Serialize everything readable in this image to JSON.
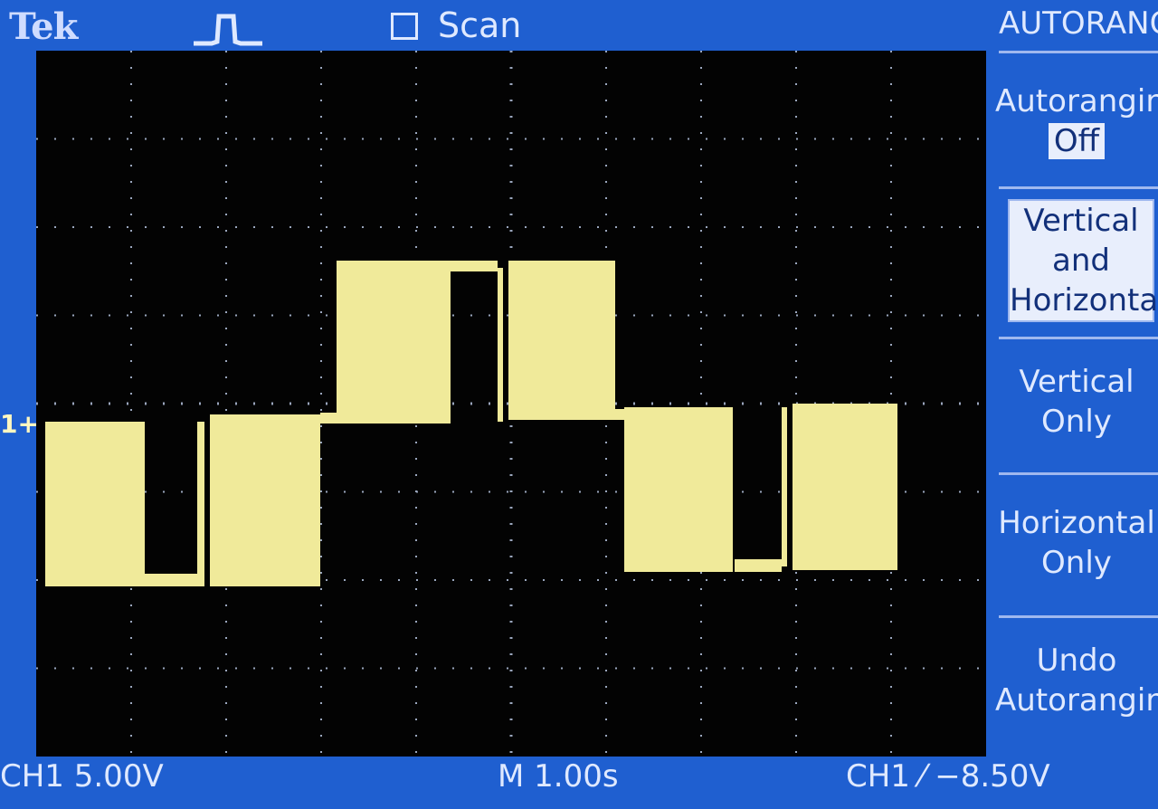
{
  "header": {
    "brand": "Tek",
    "acquire_icon": "pulse-icon",
    "scan_label": "Scan"
  },
  "colors": {
    "background": "#1f5fd0",
    "screen": "#030303",
    "trace": "#f0ea9a",
    "grid": "#9aa6bd"
  },
  "display": {
    "channel_marker": "1+",
    "divisions": {
      "horizontal": 10,
      "vertical": 8
    }
  },
  "footer": {
    "ch1_scale": "CH1  5.00V",
    "timebase": "M 1.00s",
    "trigger": "CH1 ⁄ −8.50V"
  },
  "menu": {
    "title": "AUTORANGE",
    "autoranging_label": "Autoranging",
    "autoranging_value": "Off",
    "items": [
      {
        "line1": "Vertical",
        "line2": "and",
        "line3": "Horizontal"
      },
      {
        "line1": "Vertical",
        "line2": "Only"
      },
      {
        "line1": "Horizontal",
        "line2": "Only"
      },
      {
        "line1": "Undo",
        "line2": "Autoranging"
      }
    ]
  }
}
